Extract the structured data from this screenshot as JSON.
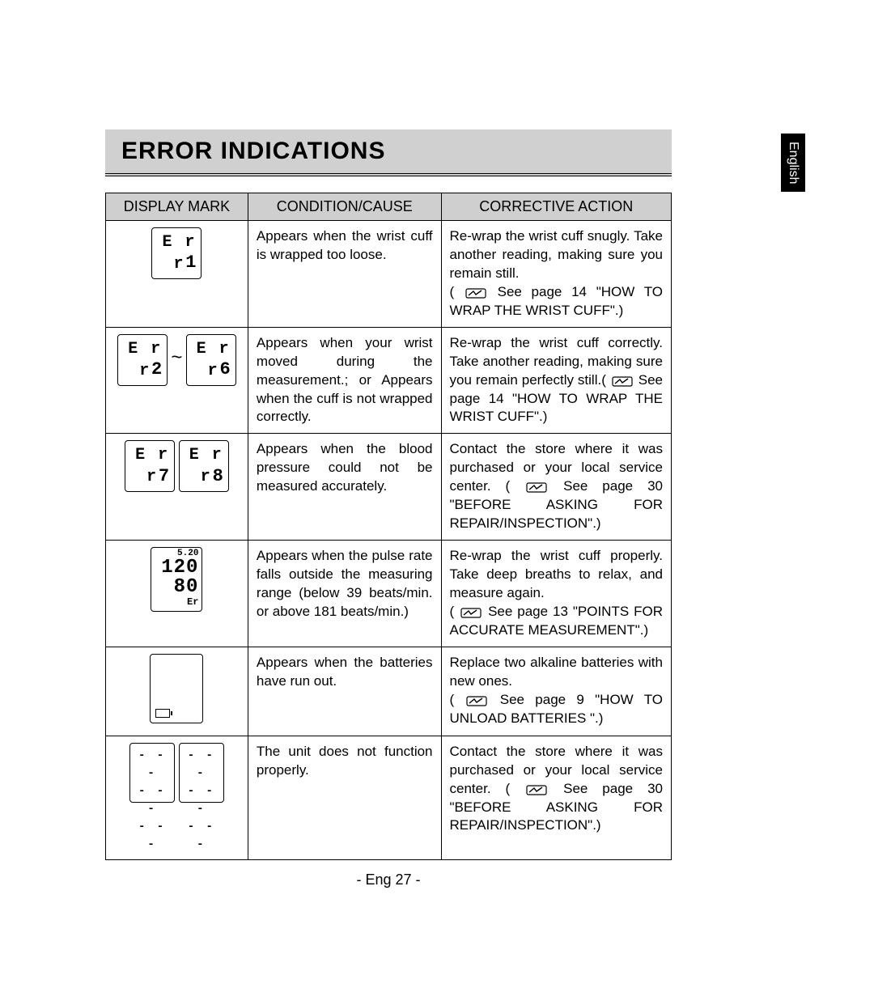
{
  "title": "ERROR INDICATIONS",
  "language_tab": "English",
  "page_number": "- Eng 27 -",
  "headers": {
    "col1": "DISPLAY MARK",
    "col2": "CONDITION/CAUSE",
    "col3": "CORRECTIVE ACTION"
  },
  "rows": [
    {
      "mark": {
        "type": "single_err",
        "code": "1"
      },
      "condition": "Appears when the wrist cuff is wrapped too loose.",
      "action_pre": "Re-wrap the wrist cuff snugly. Take another reading, making sure you remain still.\n( ",
      "action_post": " See page 14 \"HOW TO WRAP THE WRIST CUFF\".)"
    },
    {
      "mark": {
        "type": "range_err",
        "from": "2",
        "to": "6"
      },
      "condition": "Appears when your wrist moved during the measurement.; or\nAppears when the cuff is not wrapped correctly.",
      "action_pre": "Re-wrap the wrist cuff correctly. Take another reading, making sure you remain perfectly still.( ",
      "action_post": " See page 14 \"HOW TO WRAP THE WRIST CUFF\".)"
    },
    {
      "mark": {
        "type": "pair_err",
        "a": "7",
        "b": "8"
      },
      "condition": "Appears when the blood pressure could not be measured accurately.",
      "action_pre": "Contact the store where it was purchased or your local service center. ( ",
      "action_post": " See page 30 \"BEFORE ASKING FOR REPAIR/INSPECTION\".)"
    },
    {
      "mark": {
        "type": "pulse",
        "time": "5.20",
        "sys": "120",
        "dia": "80",
        "tag": "Er"
      },
      "condition": "Appears when the pulse rate falls outside the measuring range (below 39 beats/min. or above 181 beats/min.)",
      "action_pre": "Re-wrap the wrist cuff properly. Take deep breaths to relax, and measure again.\n( ",
      "action_post": " See page 13 \"POINTS FOR ACCURATE MEASUREMENT\".)"
    },
    {
      "mark": {
        "type": "battery"
      },
      "condition": "Appears when the batteries have run out.",
      "action_pre": "Replace two alkaline batteries with new ones.\n( ",
      "action_post": " See page 9 \"HOW TO UNLOAD BATTERIES \".)"
    },
    {
      "mark": {
        "type": "dashes"
      },
      "condition": "The unit does not function properly.",
      "action_pre": "Contact the store where it was purchased or your local service center. ( ",
      "action_post": " See page 30 \"BEFORE ASKING FOR REPAIR/INSPECTION\".)"
    }
  ]
}
